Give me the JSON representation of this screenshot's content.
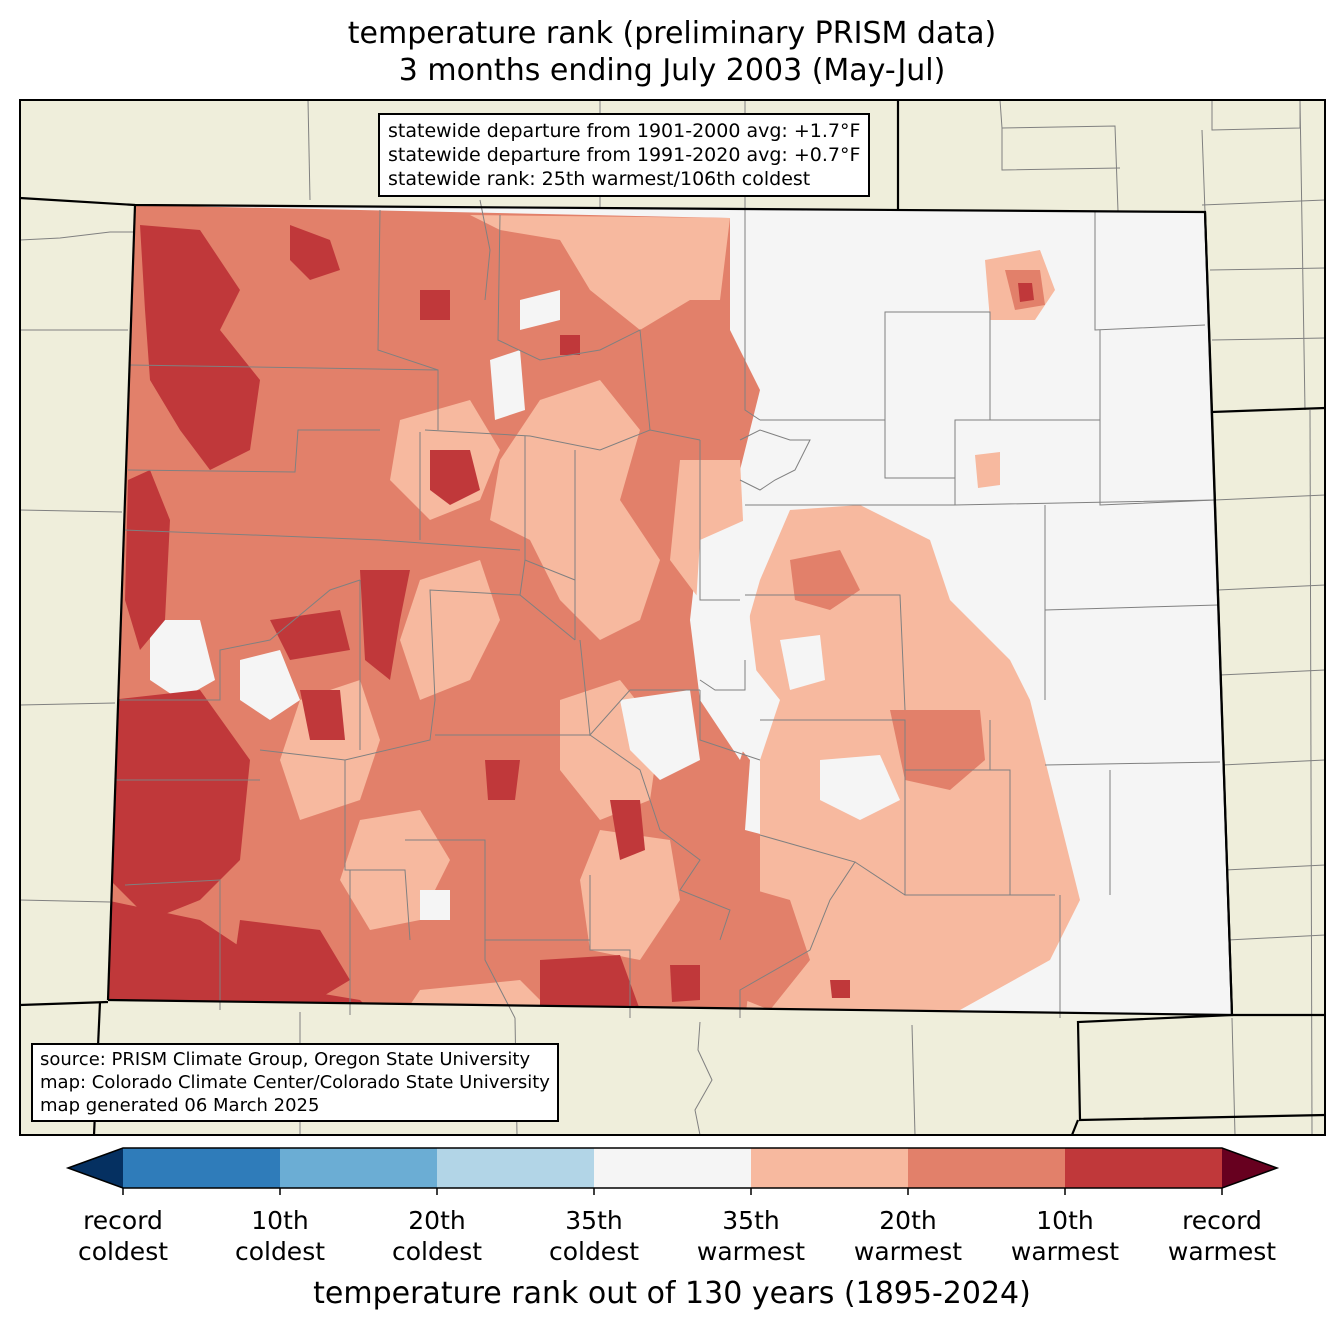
{
  "title": {
    "line1": "temperature rank (preliminary PRISM data)",
    "line2": "3 months ending July 2003 (May-Jul)"
  },
  "stats": {
    "line1": "statewide departure from 1901-2000 avg: +1.7°F",
    "line2": "statewide departure from 1991-2020 avg: +0.7°F",
    "line3": "statewide rank: 25th warmest/106th coldest"
  },
  "source": {
    "line1": "source: PRISM Climate Group, Oregon State University",
    "line2": "map: Colorado Climate Center/Colorado State University",
    "line3": "map generated 06 March 2025"
  },
  "colorbar": {
    "xlabel": "temperature rank out of 130 years (1895-2024)",
    "colors": [
      "#053061",
      "#2f7cba",
      "#6badd4",
      "#b2d5e7",
      "#f5f5f5",
      "#f7b99f",
      "#e2806a",
      "#c0383a",
      "#67001f"
    ],
    "ticks": [
      {
        "line1": "record",
        "line2": "coldest"
      },
      {
        "line1": "10th",
        "line2": "coldest"
      },
      {
        "line1": "20th",
        "line2": "coldest"
      },
      {
        "line1": "35th",
        "line2": "coldest"
      },
      {
        "line1": "35th",
        "line2": "warmest"
      },
      {
        "line1": "20th",
        "line2": "warmest"
      },
      {
        "line1": "10th",
        "line2": "warmest"
      },
      {
        "line1": "record",
        "line2": "warmest"
      }
    ]
  },
  "map_colors": {
    "land_outside": "#efeedb",
    "normal": "#f5f5f5",
    "warm35": "#f7b99f",
    "warm20": "#e2806a",
    "warm10": "#c0383a",
    "county_line": "#808080"
  }
}
